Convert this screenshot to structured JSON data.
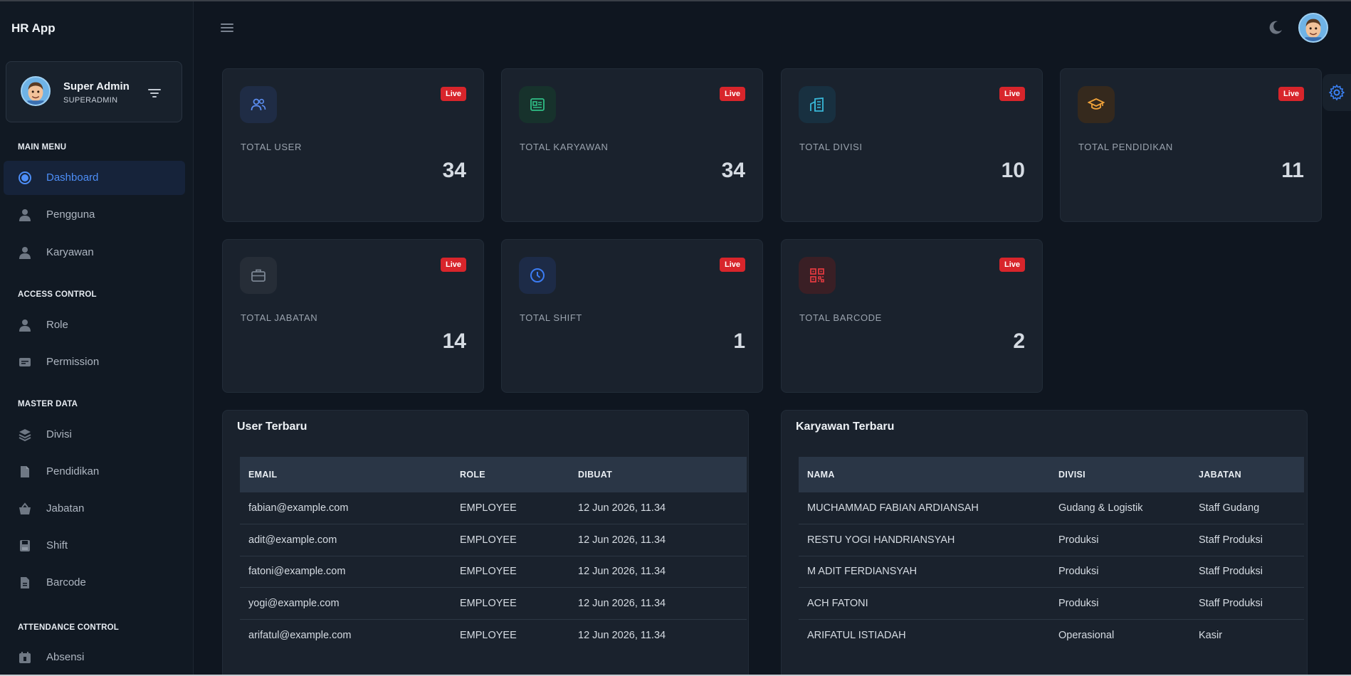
{
  "app": {
    "title": "HR App"
  },
  "profile": {
    "name": "Super Admin",
    "role": "SUPERADMIN"
  },
  "sidebar": {
    "sections": [
      {
        "label": "MAIN MENU",
        "items": [
          {
            "label": "Dashboard",
            "icon": "dashboard-icon",
            "active": true
          },
          {
            "label": "Pengguna",
            "icon": "user-icon"
          },
          {
            "label": "Karyawan",
            "icon": "user-icon"
          }
        ]
      },
      {
        "label": "ACCESS CONTROL",
        "items": [
          {
            "label": "Role",
            "icon": "user-icon"
          },
          {
            "label": "Permission",
            "icon": "id-card-icon"
          }
        ]
      },
      {
        "label": "MASTER DATA",
        "items": [
          {
            "label": "Divisi",
            "icon": "layers-icon"
          },
          {
            "label": "Pendidikan",
            "icon": "document-icon"
          },
          {
            "label": "Jabatan",
            "icon": "basket-icon"
          },
          {
            "label": "Shift",
            "icon": "floppy-icon"
          },
          {
            "label": "Barcode",
            "icon": "file-icon"
          }
        ]
      },
      {
        "label": "ATTENDANCE CONTROL",
        "items": [
          {
            "label": "Absensi",
            "icon": "calendar-icon"
          }
        ]
      }
    ]
  },
  "stats": [
    {
      "label": "TOTAL USER",
      "value": "34",
      "badge": "Live",
      "icon": "users-icon",
      "color": "#5b8df0",
      "bg": "#1f2c45"
    },
    {
      "label": "TOTAL KARYAWAN",
      "value": "34",
      "badge": "Live",
      "icon": "id-card-icon",
      "color": "#2fbf86",
      "bg": "#17322c"
    },
    {
      "label": "TOTAL DIVISI",
      "value": "10",
      "badge": "Live",
      "icon": "building-icon",
      "color": "#38b7d8",
      "bg": "#183040"
    },
    {
      "label": "TOTAL PENDIDIKAN",
      "value": "11",
      "badge": "Live",
      "icon": "graduation-cap-icon",
      "color": "#f0a23a",
      "bg": "#35291d"
    },
    {
      "label": "TOTAL JABATAN",
      "value": "14",
      "badge": "Live",
      "icon": "briefcase-icon",
      "color": "#7b8593",
      "bg": "#262d37"
    },
    {
      "label": "TOTAL SHIFT",
      "value": "1",
      "badge": "Live",
      "icon": "clock-icon",
      "color": "#3b7cf3",
      "bg": "#1d2b47"
    },
    {
      "label": "TOTAL BARCODE",
      "value": "2",
      "badge": "Live",
      "icon": "qr-code-icon",
      "color": "#e0393f",
      "bg": "#3a1f25"
    }
  ],
  "user_table": {
    "title": "User Terbaru",
    "columns": [
      "EMAIL",
      "ROLE",
      "DIBUAT"
    ],
    "rows": [
      [
        "fabian@example.com",
        "EMPLOYEE",
        "12 Jun 2026, 11.34"
      ],
      [
        "adit@example.com",
        "EMPLOYEE",
        "12 Jun 2026, 11.34"
      ],
      [
        "fatoni@example.com",
        "EMPLOYEE",
        "12 Jun 2026, 11.34"
      ],
      [
        "yogi@example.com",
        "EMPLOYEE",
        "12 Jun 2026, 11.34"
      ],
      [
        "arifatul@example.com",
        "EMPLOYEE",
        "12 Jun 2026, 11.34"
      ]
    ]
  },
  "employee_table": {
    "title": "Karyawan Terbaru",
    "columns": [
      "NAMA",
      "DIVISI",
      "JABATAN"
    ],
    "rows": [
      [
        "MUCHAMMAD FABIAN ARDIANSAH",
        "Gudang & Logistik",
        "Staff Gudang"
      ],
      [
        "RESTU YOGI HANDRIANSYAH",
        "Produksi",
        "Staff Produksi"
      ],
      [
        "M ADIT FERDIANSYAH",
        "Produksi",
        "Staff Produksi"
      ],
      [
        "ACH FATONI",
        "Produksi",
        "Staff Produksi"
      ],
      [
        "ARIFATUL ISTIADAH",
        "Operasional",
        "Kasir"
      ]
    ]
  }
}
